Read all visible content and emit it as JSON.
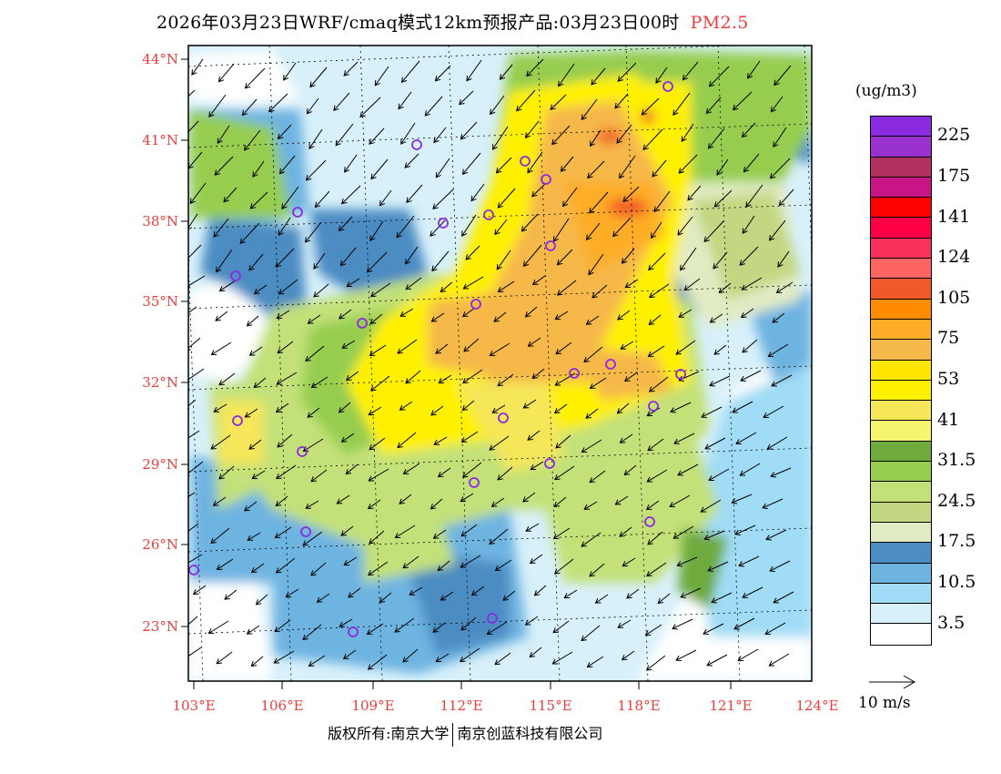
{
  "title": {
    "main": "2026年03月23日WRF/cmaq模式12km预报产品:03月23日00时",
    "species": "PM2.5"
  },
  "axes": {
    "lat_labels": [
      "44°N",
      "41°N",
      "38°N",
      "35°N",
      "32°N",
      "29°N",
      "26°N",
      "23°N"
    ],
    "lon_labels": [
      "103°E",
      "106°E",
      "109°E",
      "112°E",
      "115°E",
      "118°E",
      "121°E",
      "124°E"
    ]
  },
  "colorbar": {
    "unit": "(ug/m3)",
    "labels": [
      "225",
      "175",
      "141",
      "124",
      "105",
      "75",
      "53",
      "41",
      "31.5",
      "24.5",
      "17.5",
      "10.5",
      "3.5"
    ],
    "colors": [
      "#8a2be2",
      "#9932cc",
      "#b03060",
      "#c71585",
      "#ff0000",
      "#ff0046",
      "#f8325a",
      "#ff6464",
      "#f05a28",
      "#ff8c00",
      "#ffad28",
      "#f5b84a",
      "#ffe600",
      "#fff000",
      "#f5e65a",
      "#f5f56e",
      "#6eaa3c",
      "#96cd50",
      "#c3e178",
      "#c3d782",
      "#e1ebc3",
      "#4b8cc3",
      "#6eb4e1",
      "#a0dcf5",
      "#d7f0fa",
      "#ffffff"
    ]
  },
  "wind_reference": "10 m/s",
  "footer": {
    "left": "版权所有:南京大学",
    "right": "南京创蓝科技有限公司"
  },
  "station_color": "#8a2be2"
}
